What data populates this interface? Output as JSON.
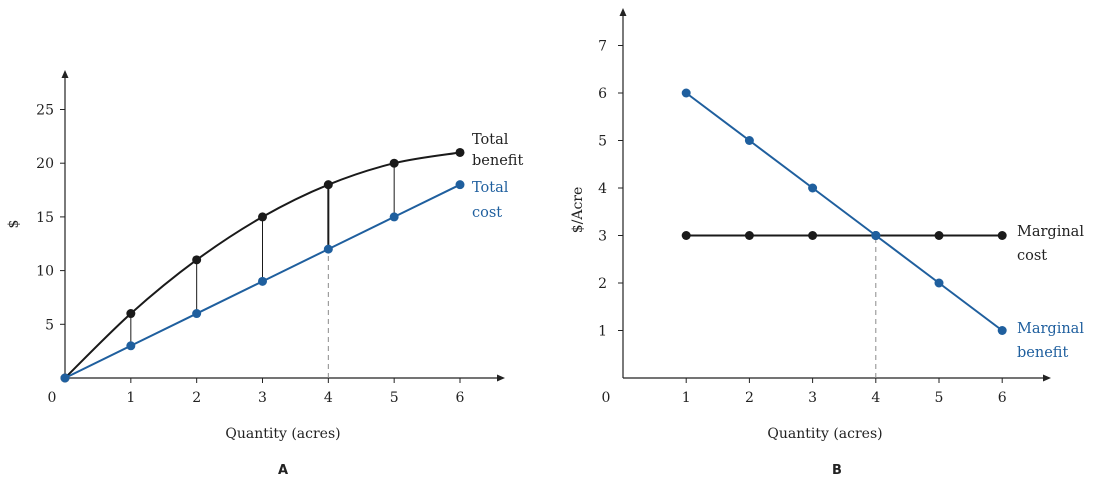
{
  "chart_data": [
    {
      "type": "line",
      "panel_label": "A",
      "xlabel": "Quantity (acres)",
      "ylabel": "$",
      "xlim": [
        0,
        6.7
      ],
      "ylim": [
        0,
        28
      ],
      "x_ticks": [
        1,
        2,
        3,
        4,
        5,
        6
      ],
      "y_ticks": [
        5,
        10,
        15,
        20,
        25
      ],
      "origin_label": "0",
      "grid": false,
      "series": [
        {
          "name_lines": [
            "Total",
            "benefit"
          ],
          "color": "#1a1a1a",
          "smooth": true,
          "x": [
            0,
            1,
            2,
            3,
            4,
            5,
            6
          ],
          "y": [
            0,
            6,
            11,
            15,
            18,
            20,
            21
          ]
        },
        {
          "name_lines": [
            "Total",
            "cost"
          ],
          "color": "#1f5f9e",
          "smooth": false,
          "x": [
            0,
            1,
            2,
            3,
            4,
            5,
            6
          ],
          "y": [
            0,
            3,
            6,
            9,
            12,
            15,
            18
          ]
        }
      ],
      "dashed_guide_x": 4
    },
    {
      "type": "line",
      "panel_label": "B",
      "xlabel": "Quantity (acres)",
      "ylabel": "$/Acre",
      "xlim": [
        0,
        6.8
      ],
      "ylim": [
        0,
        7.7
      ],
      "x_ticks": [
        1,
        2,
        3,
        4,
        5,
        6
      ],
      "y_ticks": [
        1,
        2,
        3,
        4,
        5,
        6,
        7
      ],
      "origin_label": "0",
      "grid": false,
      "series": [
        {
          "name_lines": [
            "Marginal",
            "cost"
          ],
          "color": "#1a1a1a",
          "smooth": false,
          "x": [
            1,
            2,
            3,
            4,
            5,
            6
          ],
          "y": [
            3,
            3,
            3,
            3,
            3,
            3
          ]
        },
        {
          "name_lines": [
            "Marginal",
            "benefit"
          ],
          "color": "#1f5f9e",
          "smooth": false,
          "x": [
            1,
            2,
            3,
            4,
            5,
            6
          ],
          "y": [
            6,
            5,
            4,
            3,
            2,
            1
          ]
        }
      ],
      "dashed_guide_x": 4
    }
  ]
}
